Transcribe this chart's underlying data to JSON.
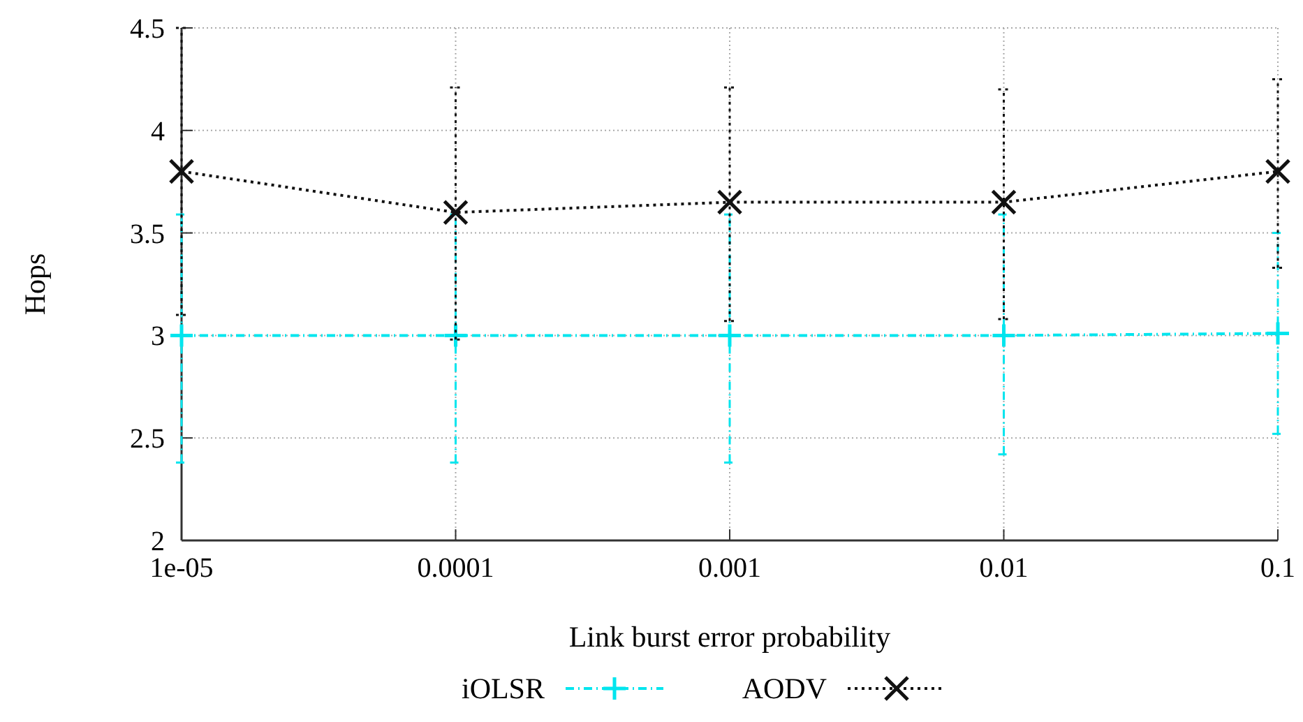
{
  "chart_data": {
    "type": "line",
    "xlabel": "Link burst error probability",
    "ylabel": "Hops",
    "x": [
      1e-05,
      0.0001,
      0.001,
      0.01,
      0.1
    ],
    "log": "x",
    "xlim": [
      1e-05,
      0.1
    ],
    "xticks": [
      {
        "value": 1e-05,
        "label": "1e-05"
      },
      0.0001,
      0.001,
      0.01,
      0.1
    ],
    "ylim": [
      2,
      4.5
    ],
    "yticks": [
      2,
      2.5,
      3,
      3.5,
      4,
      4.5
    ],
    "grid": true,
    "legend": "bottom",
    "series": [
      {
        "name": "iOLSR",
        "color": "#00e5ee",
        "marker": "cross",
        "line_style": "dashed",
        "values": [
          3.0,
          3.0,
          3.0,
          3.0,
          3.01
        ],
        "errors": [
          [
            2.38,
            3.59
          ],
          [
            2.38,
            3.59
          ],
          [
            2.38,
            3.59
          ],
          [
            2.42,
            3.59
          ],
          [
            2.52,
            3.5
          ]
        ]
      },
      {
        "name": "AODV",
        "color": "#111111",
        "marker": "x",
        "line_style": "dotted",
        "values": [
          3.8,
          3.6,
          3.65,
          3.65,
          3.8
        ],
        "errors": [
          [
            3.1,
            4.5
          ],
          [
            2.98,
            4.21
          ],
          [
            3.07,
            4.21
          ],
          [
            3.08,
            4.2
          ],
          [
            3.33,
            4.25
          ]
        ]
      }
    ]
  }
}
